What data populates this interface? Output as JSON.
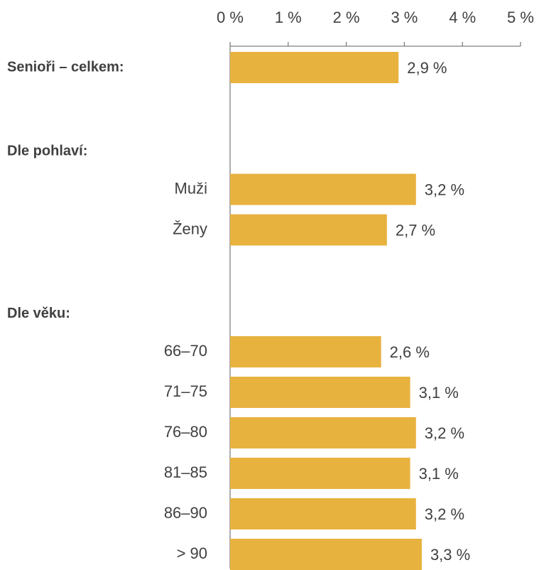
{
  "chart_data": {
    "type": "bar",
    "orientation": "horizontal",
    "color": "#e8b23f",
    "xlim": [
      0,
      5
    ],
    "xticks": [
      {
        "value": 0,
        "label": "0 %"
      },
      {
        "value": 1,
        "label": "1 %"
      },
      {
        "value": 2,
        "label": "2 %"
      },
      {
        "value": 3,
        "label": "3 %"
      },
      {
        "value": 4,
        "label": "4 %"
      },
      {
        "value": 5,
        "label": "5 %"
      }
    ],
    "groups": [
      {
        "label": "Senioři – celkem:",
        "values": [
          2.9
        ],
        "value_labels": [
          "2,9 %"
        ]
      },
      {
        "label": "Dle pohlaví:",
        "categories": [
          "Muži",
          "Ženy"
        ],
        "values": [
          3.2,
          2.7
        ],
        "value_labels": [
          "3,2 %",
          "2,7 %"
        ]
      },
      {
        "label": "Dle věku:",
        "categories": [
          "66–70",
          "71–75",
          "76–80",
          "81–85",
          "86–90",
          "> 90"
        ],
        "values": [
          2.6,
          3.1,
          3.2,
          3.1,
          3.2,
          3.3
        ],
        "value_labels": [
          "2,6 %",
          "3,1 %",
          "3,2 %",
          "3,1 %",
          "3,2 %",
          "3,3 %"
        ]
      }
    ]
  }
}
